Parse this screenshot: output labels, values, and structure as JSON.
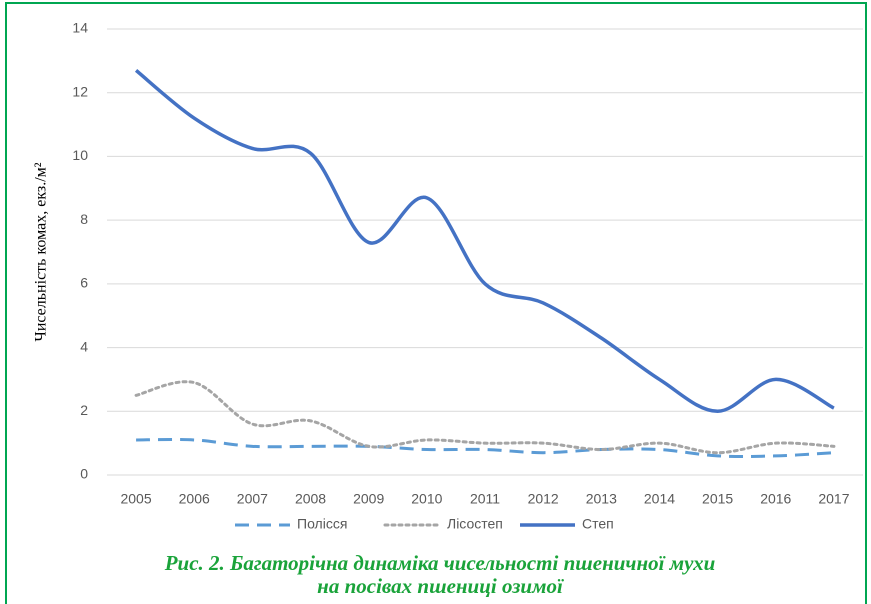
{
  "chart_data": {
    "type": "line",
    "caption": [
      "Рис. 2. Багаторічна динаміка чисельності пшеничної мухи",
      "на посівах пшениці озимої"
    ],
    "ylabel": "Чисельність комах, екз./м²",
    "categories": [
      "2005",
      "2006",
      "2007",
      "2008",
      "2009",
      "2010",
      "2011",
      "2012",
      "2013",
      "2014",
      "2015",
      "2016",
      "2017"
    ],
    "series": [
      {
        "name": "Полісся",
        "color": "#5b9bd5",
        "dash": "dashed",
        "values": [
          1.1,
          1.1,
          0.9,
          0.9,
          0.9,
          0.8,
          0.8,
          0.7,
          0.8,
          0.8,
          0.6,
          0.6,
          0.7
        ]
      },
      {
        "name": "Лісостеп",
        "color": "#a5a5a5",
        "dash": "dotted",
        "values": [
          2.5,
          2.9,
          1.6,
          1.7,
          0.9,
          1.1,
          1.0,
          1.0,
          0.8,
          1.0,
          0.7,
          1.0,
          0.9
        ]
      },
      {
        "name": "Степ",
        "color": "#4472c4",
        "dash": "solid",
        "values": [
          12.7,
          11.2,
          10.25,
          10.1,
          7.3,
          8.7,
          6.0,
          5.4,
          4.3,
          3.0,
          2.0,
          3.0,
          2.1
        ]
      }
    ],
    "ylim": [
      0,
      14
    ],
    "yticks": [
      0,
      2,
      4,
      6,
      8,
      10,
      12,
      14
    ],
    "grid": true,
    "legend": "bottom",
    "smooth": true
  }
}
